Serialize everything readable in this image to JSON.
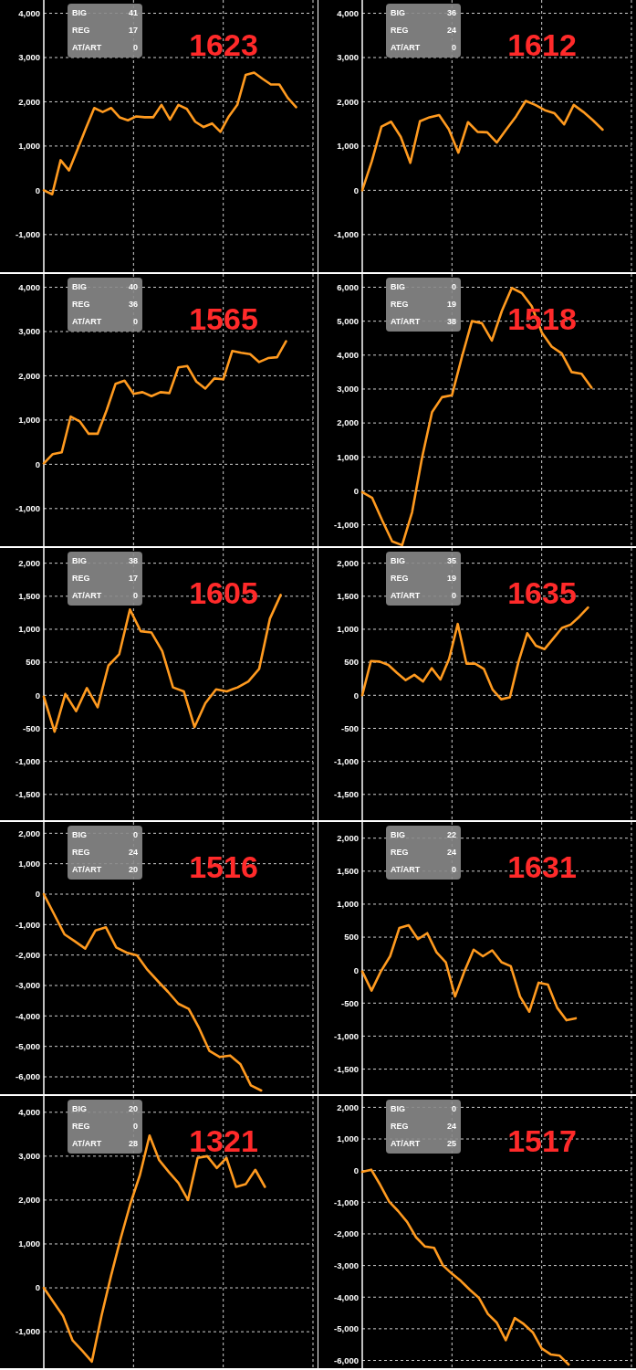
{
  "chart_data": [
    {
      "type": "line",
      "title": "1623",
      "annotations": [
        "BIG",
        "41",
        "REG",
        "17",
        "AT/ART",
        "0"
      ],
      "grid": true,
      "categories": [
        null,
        null,
        null,
        null,
        null,
        null,
        null,
        null,
        null,
        null,
        null,
        null,
        null,
        null,
        null,
        null,
        null,
        null,
        null,
        null,
        null,
        null,
        null,
        null,
        null,
        null,
        null,
        null,
        null,
        null,
        null,
        null,
        null
      ],
      "ylim": [
        -1850,
        4300
      ],
      "yticks": [
        {
          "value": -1000,
          "label": "-1,000"
        },
        0,
        {
          "value": 1000,
          "label": "1,000"
        },
        {
          "value": 2000,
          "label": "2,000"
        },
        {
          "value": 3000,
          "label": "3,000"
        },
        {
          "value": 4000,
          "label": "4,000"
        }
      ],
      "series": [
        {
          "color": "#ff9a1f",
          "values": [
            0,
            -90,
            680,
            450,
            920,
            1400,
            1860,
            1770,
            1860,
            1650,
            1580,
            1670,
            1650,
            1650,
            1930,
            1600,
            1930,
            1840,
            1550,
            1430,
            1510,
            1320,
            1670,
            1930,
            2610,
            2660,
            2520,
            2390,
            2390,
            2090,
            1880,
            null,
            null
          ]
        }
      ]
    },
    {
      "type": "line",
      "title": "1612",
      "annotations": [
        "BIG",
        "36",
        "REG",
        "24",
        "AT/ART",
        "0"
      ],
      "grid": true,
      "categories": [
        null,
        null,
        null,
        null,
        null,
        null,
        null,
        null,
        null,
        null,
        null,
        null,
        null,
        null,
        null,
        null,
        null,
        null,
        null,
        null,
        null,
        null,
        null,
        null,
        null,
        null,
        null,
        null,
        null
      ],
      "ylim": [
        -1850,
        4300
      ],
      "yticks": [
        {
          "value": -1000,
          "label": "-1,000"
        },
        0,
        {
          "value": 1000,
          "label": "1,000"
        },
        {
          "value": 2000,
          "label": "2,000"
        },
        {
          "value": 3000,
          "label": "3,000"
        },
        {
          "value": 4000,
          "label": "4,000"
        }
      ],
      "series": [
        {
          "color": "#ff9a1f",
          "values": [
            0,
            660,
            1440,
            1550,
            1210,
            620,
            1560,
            1650,
            1700,
            1380,
            850,
            1540,
            1320,
            1310,
            1080,
            1380,
            1670,
            2020,
            1930,
            1810,
            1740,
            1490,
            1930,
            1770,
            1580,
            1370,
            null,
            null,
            null
          ]
        }
      ]
    },
    {
      "type": "line",
      "title": "1565",
      "annotations": [
        "BIG",
        "40",
        "REG",
        "36",
        "AT/ART",
        "0"
      ],
      "grid": true,
      "categories": [
        null,
        null,
        null,
        null,
        null,
        null,
        null,
        null,
        null,
        null,
        null,
        null,
        null,
        null,
        null,
        null,
        null,
        null,
        null,
        null,
        null,
        null,
        null,
        null,
        null,
        null,
        null,
        null,
        null,
        null,
        null
      ],
      "ylim": [
        -1850,
        4300
      ],
      "yticks": [
        {
          "value": -1000,
          "label": "-1,000"
        },
        0,
        {
          "value": 1000,
          "label": "1,000"
        },
        {
          "value": 2000,
          "label": "2,000"
        },
        {
          "value": 3000,
          "label": "3,000"
        },
        {
          "value": 4000,
          "label": "4,000"
        }
      ],
      "series": [
        {
          "color": "#ff9a1f",
          "values": [
            20,
            230,
            270,
            1080,
            970,
            690,
            690,
            1220,
            1820,
            1890,
            1590,
            1630,
            1540,
            1630,
            1610,
            2190,
            2220,
            1870,
            1710,
            1940,
            1920,
            2560,
            2520,
            2490,
            2310,
            2400,
            2420,
            2780,
            null,
            null,
            null
          ]
        }
      ]
    },
    {
      "type": "line",
      "title": "1518",
      "annotations": [
        "BIG",
        "0",
        "REG",
        "19",
        "AT/ART",
        "38"
      ],
      "grid": true,
      "categories": [
        null,
        null,
        null,
        null,
        null,
        null,
        null,
        null,
        null,
        null,
        null,
        null,
        null,
        null,
        null,
        null,
        null,
        null,
        null,
        null,
        null,
        null,
        null,
        null,
        null,
        null,
        null,
        null
      ],
      "ylim": [
        -1630,
        6390
      ],
      "yticks": [
        {
          "value": -1000,
          "label": "-1,000"
        },
        0,
        {
          "value": 1000,
          "label": "1,000"
        },
        {
          "value": 2000,
          "label": "2,000"
        },
        {
          "value": 3000,
          "label": "3,000"
        },
        {
          "value": 4000,
          "label": "4,000"
        },
        {
          "value": 5000,
          "label": "5,000"
        },
        {
          "value": 6000,
          "label": "6,000"
        }
      ],
      "series": [
        {
          "color": "#ff9a1f",
          "values": [
            -40,
            -210,
            -870,
            -1490,
            -1600,
            -630,
            980,
            2320,
            2760,
            2820,
            3950,
            5000,
            4940,
            4430,
            5300,
            5980,
            5830,
            5440,
            4670,
            4250,
            4050,
            3500,
            3450,
            3040,
            null,
            null,
            null,
            null
          ]
        }
      ]
    },
    {
      "type": "line",
      "title": "1605",
      "annotations": [
        "BIG",
        "38",
        "REG",
        "17",
        "AT/ART",
        "0"
      ],
      "grid": true,
      "categories": [
        null,
        null,
        null,
        null,
        null,
        null,
        null,
        null,
        null,
        null,
        null,
        null,
        null,
        null,
        null,
        null,
        null,
        null,
        null,
        null,
        null,
        null,
        null,
        null,
        null,
        null
      ],
      "ylim": [
        -1890,
        2230
      ],
      "yticks": [
        {
          "value": -1500,
          "label": "-1,500"
        },
        {
          "value": -1000,
          "label": "-1,000"
        },
        -500,
        0,
        500,
        {
          "value": 1000,
          "label": "1,000"
        },
        {
          "value": 1500,
          "label": "1,500"
        },
        {
          "value": 2000,
          "label": "2,000"
        }
      ],
      "series": [
        {
          "color": "#ff9a1f",
          "values": [
            -20,
            -550,
            20,
            -240,
            110,
            -180,
            450,
            620,
            1300,
            970,
            950,
            670,
            120,
            60,
            -480,
            -120,
            90,
            60,
            120,
            210,
            400,
            1160,
            1520,
            null,
            null,
            null
          ]
        }
      ]
    },
    {
      "type": "line",
      "title": "1635",
      "annotations": [
        "BIG",
        "35",
        "REG",
        "19",
        "AT/ART",
        "0"
      ],
      "grid": true,
      "categories": [
        null,
        null,
        null,
        null,
        null,
        null,
        null,
        null,
        null,
        null,
        null,
        null,
        null,
        null,
        null,
        null,
        null,
        null,
        null,
        null,
        null,
        null,
        null,
        null,
        null,
        null,
        null,
        null,
        null,
        null,
        null,
        null
      ],
      "ylim": [
        -1890,
        2230
      ],
      "yticks": [
        {
          "value": -1500,
          "label": "-1,500"
        },
        {
          "value": -1000,
          "label": "-1,000"
        },
        -500,
        0,
        500,
        {
          "value": 1000,
          "label": "1,000"
        },
        {
          "value": 1500,
          "label": "1,500"
        },
        {
          "value": 2000,
          "label": "2,000"
        }
      ],
      "series": [
        {
          "color": "#ff9a1f",
          "values": [
            0,
            520,
            510,
            460,
            340,
            230,
            310,
            210,
            410,
            240,
            550,
            1080,
            480,
            480,
            400,
            90,
            -60,
            -30,
            510,
            940,
            750,
            700,
            860,
            1020,
            1070,
            1190,
            1330,
            null,
            null,
            null,
            null,
            null
          ]
        }
      ]
    },
    {
      "type": "line",
      "title": "1516",
      "annotations": [
        "BIG",
        "0",
        "REG",
        "24",
        "AT/ART",
        "20"
      ],
      "grid": true,
      "categories": [
        null,
        null,
        null,
        null,
        null,
        null,
        null,
        null,
        null,
        null,
        null,
        null,
        null,
        null,
        null,
        null,
        null,
        null,
        null,
        null,
        null,
        null,
        null,
        null,
        null,
        null,
        null
      ],
      "ylim": [
        -6570,
        2370
      ],
      "yticks": [
        {
          "value": -6000,
          "label": "-6,000"
        },
        {
          "value": -5000,
          "label": "-5,000"
        },
        {
          "value": -4000,
          "label": "-4,000"
        },
        {
          "value": -3000,
          "label": "-3,000"
        },
        {
          "value": -2000,
          "label": "-2,000"
        },
        {
          "value": -1000,
          "label": "-1,000"
        },
        0,
        {
          "value": 1000,
          "label": "1,000"
        },
        {
          "value": 2000,
          "label": "2,000"
        }
      ],
      "series": [
        {
          "color": "#ff9a1f",
          "values": [
            0,
            -660,
            -1320,
            -1550,
            -1790,
            -1190,
            -1090,
            -1750,
            -1920,
            -2010,
            -2480,
            -2850,
            -3210,
            -3600,
            -3770,
            -4400,
            -5150,
            -5350,
            -5300,
            -5590,
            -6280,
            -6450,
            null,
            null,
            null,
            null,
            null
          ]
        }
      ]
    },
    {
      "type": "line",
      "title": "1631",
      "annotations": [
        "BIG",
        "22",
        "REG",
        "24",
        "AT/ART",
        "0"
      ],
      "grid": true,
      "categories": [
        null,
        null,
        null,
        null,
        null,
        null,
        null,
        null,
        null,
        null,
        null,
        null,
        null,
        null,
        null,
        null,
        null,
        null,
        null,
        null,
        null,
        null,
        null,
        null,
        null,
        null,
        null,
        null,
        null,
        null
      ],
      "ylim": [
        -1880,
        2245
      ],
      "yticks": [
        {
          "value": -1500,
          "label": "-1,500"
        },
        {
          "value": -1000,
          "label": "-1,000"
        },
        -500,
        0,
        500,
        {
          "value": 1000,
          "label": "1,000"
        },
        {
          "value": 1500,
          "label": "1,500"
        },
        {
          "value": 2000,
          "label": "2,000"
        }
      ],
      "series": [
        {
          "color": "#ff9a1f",
          "values": [
            -20,
            -310,
            -20,
            210,
            640,
            680,
            470,
            560,
            270,
            120,
            -400,
            -20,
            310,
            210,
            300,
            120,
            60,
            -400,
            -630,
            -190,
            -220,
            -570,
            -760,
            -730,
            null,
            null,
            null,
            null,
            null,
            null
          ]
        }
      ]
    },
    {
      "type": "line",
      "title": "1321",
      "annotations": [
        "BIG",
        "20",
        "REG",
        "0",
        "AT/ART",
        "28"
      ],
      "grid": true,
      "categories": [
        null,
        null,
        null,
        null,
        null,
        null,
        null,
        null,
        null,
        null,
        null,
        null,
        null,
        null,
        null,
        null,
        null,
        null,
        null,
        null,
        null,
        null,
        null,
        null,
        null,
        null,
        null,
        null,
        null
      ],
      "ylim": [
        -1830,
        4370
      ],
      "yticks": [
        {
          "value": -1000,
          "label": "-1,000"
        },
        0,
        {
          "value": 1000,
          "label": "1,000"
        },
        {
          "value": 2000,
          "label": "2,000"
        },
        {
          "value": 3000,
          "label": "3,000"
        },
        {
          "value": 4000,
          "label": "4,000"
        }
      ],
      "series": [
        {
          "color": "#ff9a1f",
          "values": [
            0,
            -320,
            -640,
            -1200,
            -1430,
            -1680,
            -640,
            280,
            1130,
            1910,
            2570,
            3470,
            2910,
            2640,
            2390,
            2000,
            2960,
            3000,
            2730,
            2960,
            2300,
            2360,
            2690,
            2300,
            null,
            null,
            null,
            null,
            null
          ]
        }
      ]
    },
    {
      "type": "line",
      "title": "1517",
      "annotations": [
        "BIG",
        "0",
        "REG",
        "24",
        "AT/ART",
        "25"
      ],
      "grid": true,
      "categories": [
        null,
        null,
        null,
        null,
        null,
        null,
        null,
        null,
        null,
        null,
        null,
        null,
        null,
        null,
        null,
        null,
        null,
        null,
        null,
        null,
        null,
        null,
        null,
        null,
        null,
        null,
        null,
        null,
        null,
        null,
        null
      ],
      "ylim": [
        -6245,
        2358
      ],
      "yticks": [
        {
          "value": -6000,
          "label": "-6,000"
        },
        {
          "value": -5000,
          "label": "-5,000"
        },
        {
          "value": -4000,
          "label": "-4,000"
        },
        {
          "value": -3000,
          "label": "-3,000"
        },
        {
          "value": -2000,
          "label": "-2,000"
        },
        {
          "value": -1000,
          "label": "-1,000"
        },
        0,
        {
          "value": 1000,
          "label": "1,000"
        },
        {
          "value": 2000,
          "label": "2,000"
        }
      ],
      "series": [
        {
          "color": "#ff9a1f",
          "values": [
            -40,
            30,
            -450,
            -980,
            -1280,
            -1620,
            -2110,
            -2400,
            -2440,
            -3000,
            -3260,
            -3490,
            -3770,
            -4020,
            -4530,
            -4810,
            -5360,
            -4660,
            -4850,
            -5110,
            -5620,
            -5810,
            -5850,
            -6130,
            null,
            null,
            null,
            null,
            null,
            null,
            null
          ]
        }
      ]
    }
  ]
}
